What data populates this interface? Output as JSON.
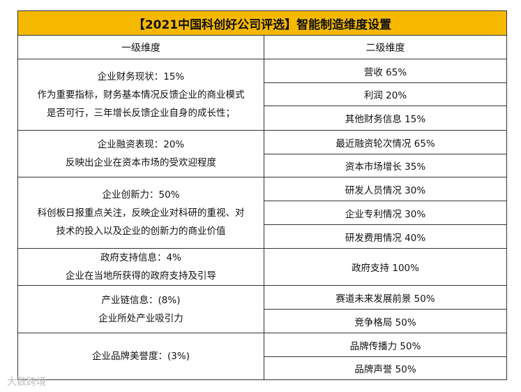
{
  "title": "【2021中国科创好公司评选】智能制造维度设置",
  "table": {
    "header": [
      "一级维度",
      "二级维度"
    ],
    "groups": [
      {
        "lines": [
          "企业财务现状：15%",
          "作为重要指标，财务基本情况反馈企业的商业模式",
          "是否可行，三年增长反馈企业自身的成长性；"
        ],
        "items": [
          "营收 65%",
          "利润 20%",
          "其他财务信息 15%"
        ]
      },
      {
        "lines": [
          "企业融资表现：20%",
          "反映出企业在资本市场的受欢迎程度"
        ],
        "items": [
          "最近融资轮次情况 65%",
          "资本市场增长 35%"
        ]
      },
      {
        "lines": [
          "企业创新力：50%",
          "科创板日报重点关注，反映企业对科研的重视、对",
          "技术的投入以及企业的创新力的商业价值"
        ],
        "items": [
          "研发人员情况 30%",
          "企业专利情况 30%",
          "研发费用情况 40%"
        ]
      },
      {
        "lines": [
          "政府支持信息：4%",
          "企业在当地所获得的政府支持及引导"
        ],
        "items": [
          "政府支持 100%"
        ]
      },
      {
        "lines": [
          "产业链信息：(8%)",
          "企业所处产业吸引力"
        ],
        "items": [
          "赛道未来发展前景 50%",
          "竞争格局 50%"
        ]
      },
      {
        "lines": [
          "企业品牌美誉度：(3%)"
        ],
        "items": [
          "品牌传播力 50%",
          "品牌声誉 50%"
        ]
      }
    ]
  },
  "watermark": "大数跨境"
}
